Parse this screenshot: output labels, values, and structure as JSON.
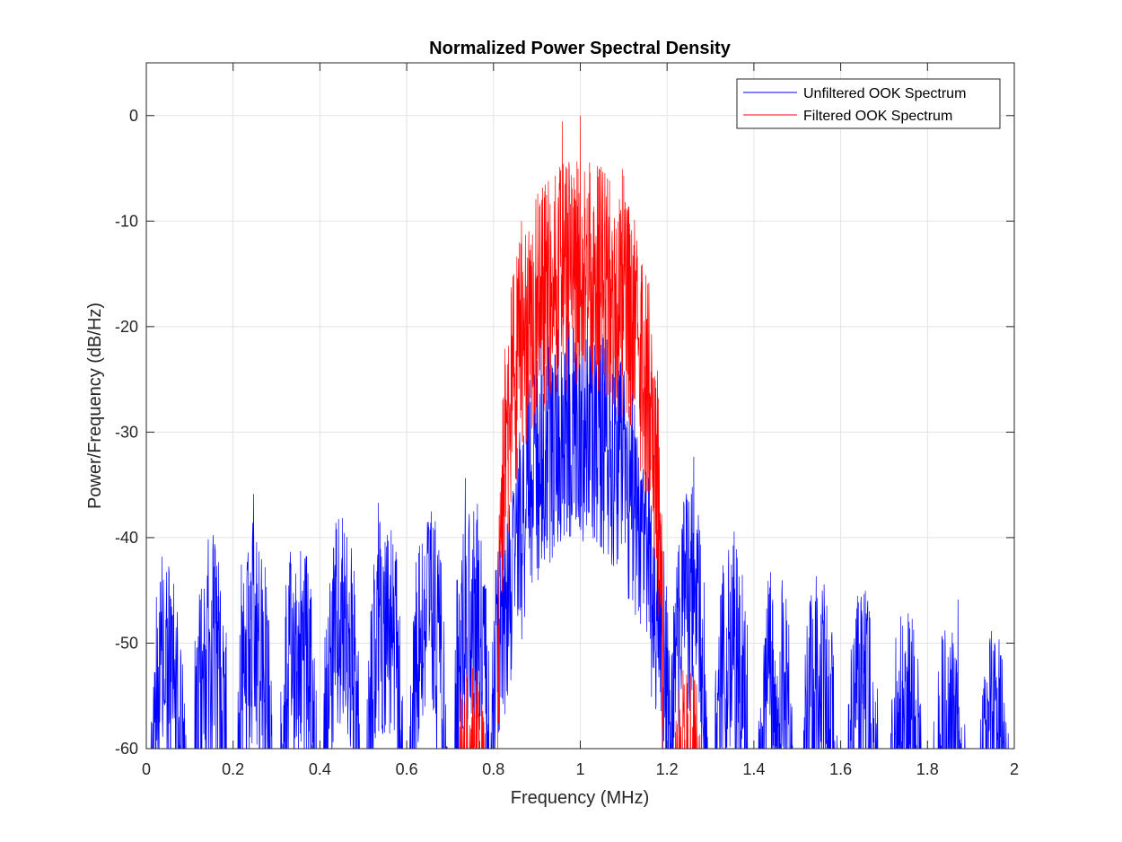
{
  "figure": {
    "title": "Normalized Power Spectral Density"
  },
  "chart_data": {
    "type": "line",
    "title": "Normalized Power Spectral Density",
    "xlabel": "Frequency (MHz)",
    "ylabel": "Power/Frequency (dB/Hz)",
    "xlim": [
      0,
      2
    ],
    "ylim": [
      -60,
      5
    ],
    "xticks": [
      0,
      0.2,
      0.4,
      0.6,
      0.8,
      1,
      1.2,
      1.4,
      1.6,
      1.8,
      2
    ],
    "xtick_labels": [
      "0",
      "0.2",
      "0.4",
      "0.6",
      "0.8",
      "1",
      "1.2",
      "1.4",
      "1.6",
      "1.8",
      "2"
    ],
    "yticks": [
      0,
      -10,
      -20,
      -30,
      -40,
      -50,
      -60
    ],
    "ytick_labels": [
      "0",
      "-10",
      "-20",
      "-30",
      "-40",
      "-50",
      "-60"
    ],
    "grid": true,
    "legend_position": "top-right",
    "series": [
      {
        "name": "Unfiltered OOK Spectrum",
        "color": "#0000ff",
        "description_lobes": [
          {
            "center": 0.05,
            "peak": -36.6,
            "halfwidth": 0.045
          },
          {
            "center": 0.15,
            "peak": -36.2,
            "halfwidth": 0.045
          },
          {
            "center": 0.25,
            "peak": -35.8,
            "halfwidth": 0.045
          },
          {
            "center": 0.35,
            "peak": -35.4,
            "halfwidth": 0.045
          },
          {
            "center": 0.45,
            "peak": -33.6,
            "halfwidth": 0.045
          },
          {
            "center": 0.55,
            "peak": -33.1,
            "halfwidth": 0.045
          },
          {
            "center": 0.65,
            "peak": -32.5,
            "halfwidth": 0.045
          },
          {
            "center": 0.75,
            "peak": -31.7,
            "halfwidth": 0.045
          },
          {
            "center": 0.85,
            "peak": -29.5,
            "halfwidth": 0.06
          },
          {
            "center": 1.0,
            "peak": -14.5,
            "halfwidth": 0.17
          },
          {
            "center": 1.15,
            "peak": -29.6,
            "halfwidth": 0.06
          },
          {
            "center": 1.25,
            "peak": -30.7,
            "halfwidth": 0.045
          },
          {
            "center": 1.35,
            "peak": -35.2,
            "halfwidth": 0.045
          },
          {
            "center": 1.45,
            "peak": -37.6,
            "halfwidth": 0.045
          },
          {
            "center": 1.55,
            "peak": -38.9,
            "halfwidth": 0.045
          },
          {
            "center": 1.65,
            "peak": -40.7,
            "halfwidth": 0.045
          },
          {
            "center": 1.75,
            "peak": -42.2,
            "halfwidth": 0.045
          },
          {
            "center": 1.85,
            "peak": -43.3,
            "halfwidth": 0.045
          },
          {
            "center": 1.95,
            "peak": -44.2,
            "halfwidth": 0.045
          }
        ]
      },
      {
        "name": "Filtered OOK Spectrum",
        "color": "#ff0000",
        "description_lobes": [
          {
            "center": 0.65,
            "peak": -56.5,
            "halfwidth": 0.04
          },
          {
            "center": 0.75,
            "peak": -48.0,
            "halfwidth": 0.045
          },
          {
            "center": 1.0,
            "peak": 0,
            "halfwidth": 0.19
          },
          {
            "center": 1.25,
            "peak": -47.5,
            "halfwidth": 0.045
          },
          {
            "center": 1.35,
            "peak": -57.0,
            "halfwidth": 0.03
          }
        ],
        "spikes": [
          {
            "x": 0.902,
            "y": -7.4
          },
          {
            "x": 1.0,
            "y": 0
          },
          {
            "x": 1.1,
            "y": -5.7
          }
        ]
      }
    ]
  }
}
